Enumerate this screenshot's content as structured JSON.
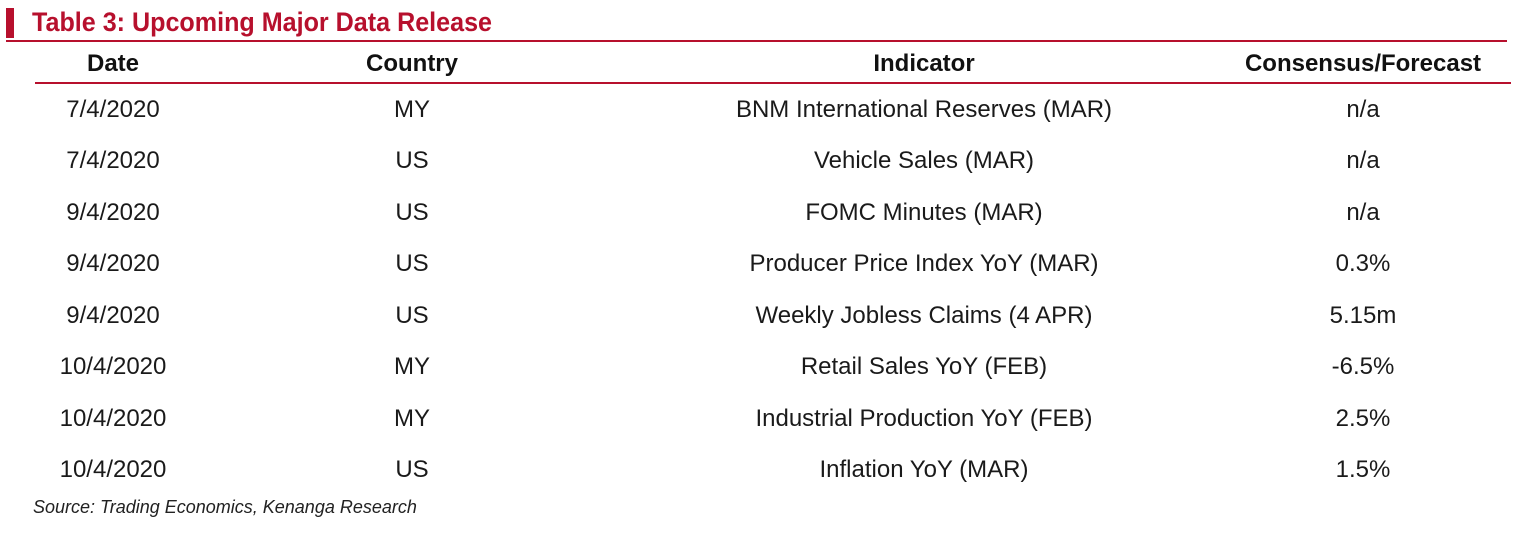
{
  "title": "Table 3: Upcoming Major Data Release",
  "accent_color": "#b7102d",
  "table": {
    "headers": {
      "date": "Date",
      "country": "Country",
      "indicator": "Indicator",
      "forecast": "Consensus/Forecast"
    },
    "rows": [
      {
        "date": "7/4/2020",
        "country": "MY",
        "indicator": "BNM International Reserves (MAR)",
        "forecast": "n/a"
      },
      {
        "date": "7/4/2020",
        "country": "US",
        "indicator": "Vehicle Sales (MAR)",
        "forecast": "n/a"
      },
      {
        "date": "9/4/2020",
        "country": "US",
        "indicator": "FOMC Minutes (MAR)",
        "forecast": "n/a"
      },
      {
        "date": "9/4/2020",
        "country": "US",
        "indicator": "Producer Price Index YoY (MAR)",
        "forecast": "0.3%"
      },
      {
        "date": "9/4/2020",
        "country": "US",
        "indicator": "Weekly Jobless Claims (4 APR)",
        "forecast": "5.15m"
      },
      {
        "date": "10/4/2020",
        "country": "MY",
        "indicator": "Retail Sales YoY (FEB)",
        "forecast": "-6.5%"
      },
      {
        "date": "10/4/2020",
        "country": "MY",
        "indicator": "Industrial Production YoY (FEB)",
        "forecast": "2.5%"
      },
      {
        "date": "10/4/2020",
        "country": "US",
        "indicator": "Inflation YoY (MAR)",
        "forecast": "1.5%"
      }
    ]
  },
  "source": "Source: Trading Economics, Kenanga Research"
}
